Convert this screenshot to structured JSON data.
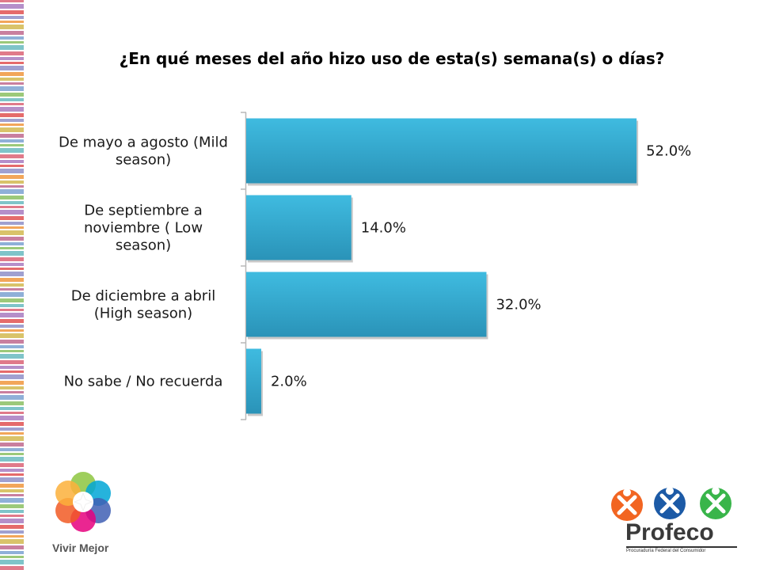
{
  "chart_data": {
    "type": "bar",
    "orientation": "horizontal",
    "title": "¿En qué meses del año hizo uso de esta(s) semana(s) o días?",
    "categories": [
      [
        "De mayo a agosto (Mild",
        "season)"
      ],
      [
        "De septiembre a",
        "noviembre ( Low",
        "season)"
      ],
      [
        "De diciembre a abril",
        "(High season)"
      ],
      [
        "No sabe / No recuerda"
      ]
    ],
    "values": [
      52.0,
      14.0,
      32.0,
      2.0
    ],
    "value_labels": [
      "52.0%",
      "14.0%",
      "32.0%",
      "2.0%"
    ],
    "xlim": [
      0,
      58
    ],
    "grid": false,
    "bar_color": "#3bb4d8"
  },
  "branding": {
    "left_logo_text": "Vivir Mejor",
    "right_logo_name": "Profeco",
    "right_logo_subtitle": "Procuraduría Federal del Consumidor"
  }
}
